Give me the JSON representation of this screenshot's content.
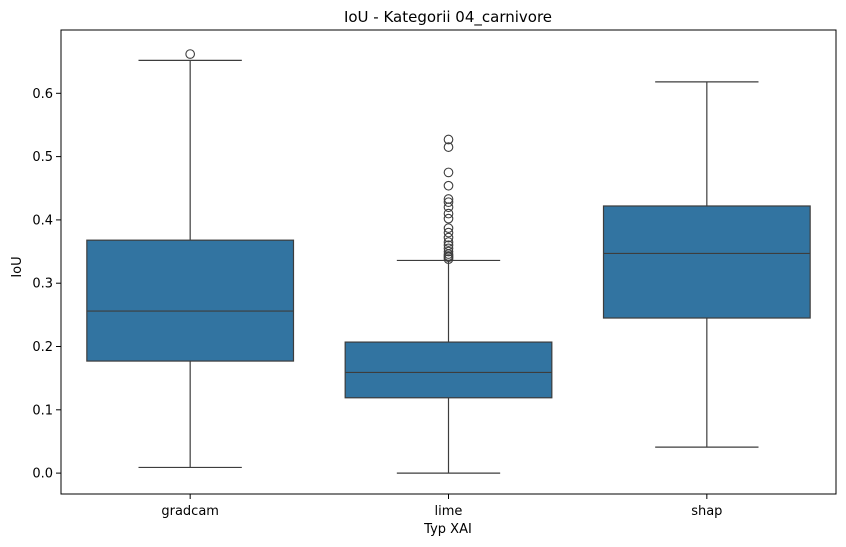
{
  "chart_data": {
    "type": "box",
    "title": "IoU - Kategorii 04_carnivore",
    "xlabel": "Typ XAI",
    "ylabel": "IoU",
    "categories": [
      "gradcam",
      "lime",
      "shap"
    ],
    "ylim": [
      -0.033,
      0.7
    ],
    "yticks": [
      "0.0",
      "0.1",
      "0.2",
      "0.3",
      "0.4",
      "0.5",
      "0.6"
    ],
    "grid": false,
    "box_color": "#3274a1",
    "line_color": "#3d3d3d",
    "boxes": [
      {
        "category": "gradcam",
        "whisker_low": 0.009,
        "q1": 0.177,
        "median": 0.256,
        "q3": 0.368,
        "whisker_high": 0.652,
        "outliers": [
          0.662
        ]
      },
      {
        "category": "lime",
        "whisker_low": 0.0,
        "q1": 0.119,
        "median": 0.159,
        "q3": 0.207,
        "whisker_high": 0.336,
        "outliers": [
          0.338,
          0.341,
          0.343,
          0.346,
          0.35,
          0.355,
          0.36,
          0.365,
          0.372,
          0.38,
          0.387,
          0.402,
          0.41,
          0.42,
          0.428,
          0.433,
          0.454,
          0.475,
          0.515,
          0.527
        ]
      },
      {
        "category": "shap",
        "whisker_low": 0.041,
        "q1": 0.245,
        "median": 0.347,
        "q3": 0.422,
        "whisker_high": 0.618,
        "outliers": []
      }
    ]
  }
}
